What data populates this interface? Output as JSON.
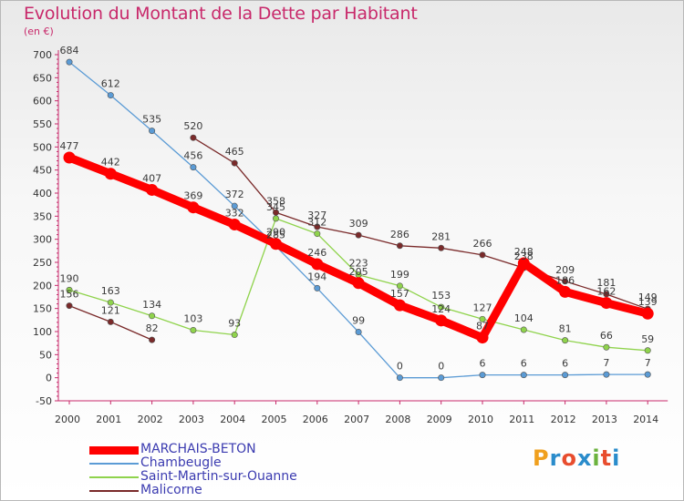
{
  "title": "Evolution du Montant de la Dette par Habitant",
  "unit": "(en €)",
  "logo": "Proxiti",
  "logo_colors": [
    "#f0a01e",
    "#2a8ccb",
    "#e84d2e",
    "#2a8ccb",
    "#6cb33e",
    "#e84d2e",
    "#2a8ccb"
  ],
  "chart_data": {
    "type": "line",
    "x": [
      2000,
      2001,
      2002,
      2003,
      2004,
      2005,
      2006,
      2007,
      2008,
      2009,
      2010,
      2011,
      2012,
      2013,
      2014
    ],
    "ylim": [
      -50,
      700
    ],
    "yticks": [
      -50,
      0,
      50,
      100,
      150,
      200,
      250,
      300,
      350,
      400,
      450,
      500,
      550,
      600,
      650,
      700
    ],
    "grid": false,
    "legend_position": "bottom-left",
    "series": [
      {
        "name": "MARCHAIS-BETON",
        "color": "#ff0000",
        "values": [
          477,
          442,
          407,
          369,
          332,
          290,
          246,
          205,
          157,
          124,
          87,
          248,
          186,
          162,
          139
        ],
        "labels": [
          "477",
          "442",
          "407",
          "369",
          "332",
          "290",
          "246",
          "205",
          "157",
          "124",
          "87",
          "248",
          "186",
          "162",
          "139"
        ]
      },
      {
        "name": "Chambeugle",
        "color": "#5b9bd5",
        "values": [
          684,
          612,
          535,
          456,
          372,
          285,
          194,
          99,
          0,
          0,
          6,
          6,
          6,
          7,
          7
        ],
        "labels": [
          "684",
          "612",
          "535",
          "456",
          "372",
          "285",
          "194",
          "99",
          "0",
          "0",
          "6",
          "6",
          "6",
          "7",
          "7"
        ]
      },
      {
        "name": "Saint-Martin-sur-Ouanne",
        "color": "#8fd34c",
        "values": [
          190,
          163,
          134,
          103,
          93,
          345,
          312,
          223,
          199,
          153,
          127,
          104,
          81,
          66,
          59
        ],
        "labels": [
          "190",
          "163",
          "134",
          "103",
          "93",
          "345",
          "312",
          "223",
          "199",
          "153",
          "127",
          "104",
          "81",
          "66",
          "59"
        ]
      },
      {
        "name": "Malicorne",
        "color": "#7a2a2a",
        "values": [
          156,
          121,
          82,
          520,
          465,
          358,
          327,
          309,
          286,
          281,
          266,
          238,
          209,
          181,
          149
        ],
        "labels": [
          "156",
          "121",
          "82",
          "520",
          "465",
          "358",
          "327",
          "309",
          "286",
          "281",
          "266",
          "238",
          "209",
          "181",
          "149"
        ],
        "gap_after_index": 2
      }
    ]
  }
}
